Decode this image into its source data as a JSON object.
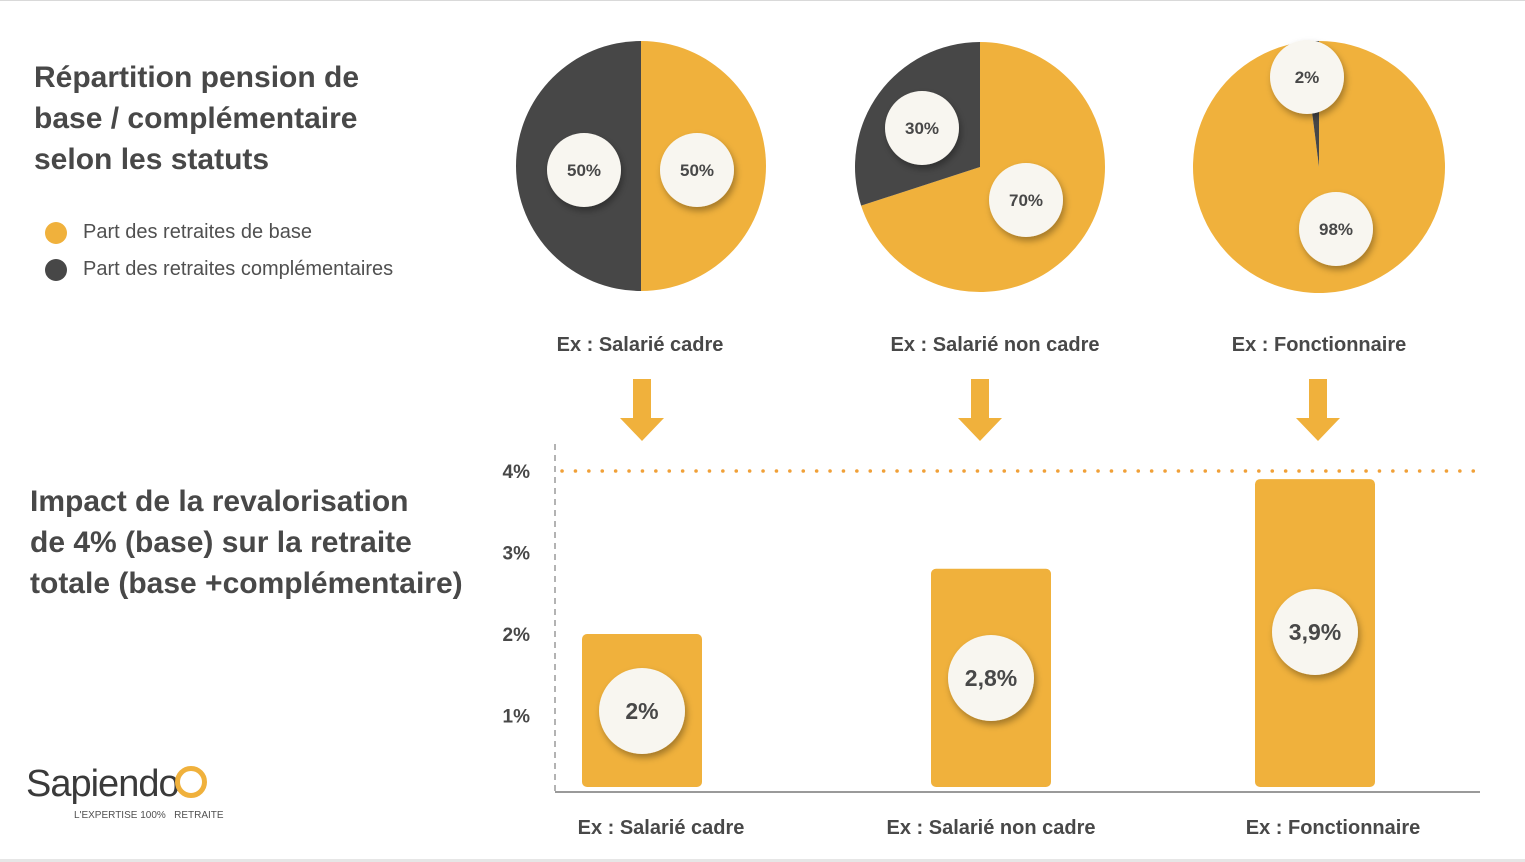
{
  "colors": {
    "base": "#F0B13C",
    "complementary": "#474747",
    "label_circle": "#F8F6F0",
    "reference_line": "#F0A038",
    "text": "#484848"
  },
  "top_title": "Répartition pension de\nbase / complémentaire\nselon les statuts",
  "bottom_title": "Impact de la revalorisation\nde 4% (base)  sur la retraite\ntotale (base +complémentaire)",
  "legend": [
    {
      "label": "Part des retraites de base",
      "color": "#F0B13C"
    },
    {
      "label": "Part des retraites complémentaires",
      "color": "#474747"
    }
  ],
  "arrow_icon": "down-arrow-icon",
  "chart_data": [
    {
      "type": "pie",
      "category": "Ex : Salarié cadre",
      "slices": [
        {
          "name": "Part des retraites de base",
          "value": 50,
          "label": "50%"
        },
        {
          "name": "Part des retraites complémentaires",
          "value": 50,
          "label": "50%"
        }
      ]
    },
    {
      "type": "pie",
      "category": "Ex : Salarié non cadre",
      "slices": [
        {
          "name": "Part des retraites de base",
          "value": 70,
          "label": "70%"
        },
        {
          "name": "Part des retraites complémentaires",
          "value": 30,
          "label": "30%"
        }
      ]
    },
    {
      "type": "pie",
      "category": "Ex : Fonctionnaire",
      "slices": [
        {
          "name": "Part des retraites de base",
          "value": 98,
          "label": "98%"
        },
        {
          "name": "Part des retraites complémentaires",
          "value": 2,
          "label": "2%"
        }
      ]
    },
    {
      "type": "bar",
      "categories": [
        "Ex : Salarié cadre",
        "Ex : Salarié non cadre",
        "Ex : Fonctionnaire"
      ],
      "values": [
        2,
        2.8,
        3.9
      ],
      "data_labels": [
        "2%",
        "2,8%",
        "3,9%"
      ],
      "yticks": [
        "1%",
        "2%",
        "3%",
        "4%"
      ],
      "ylim": [
        0,
        4.3
      ],
      "reference_line": 4,
      "grid": false
    }
  ],
  "logo": {
    "name": "Sapiendo",
    "tagline": "L'EXPERTISE 100%   RETRAITE"
  }
}
